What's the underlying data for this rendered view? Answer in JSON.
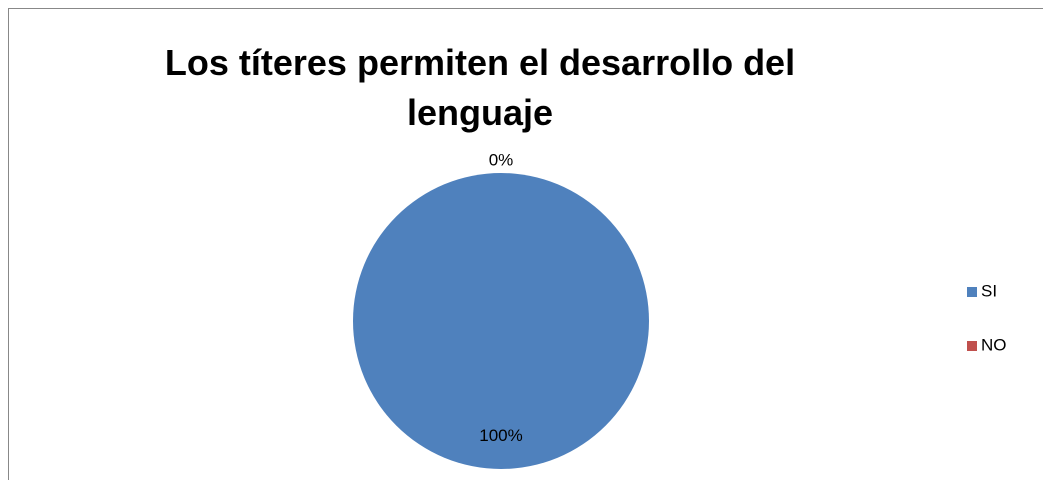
{
  "chart_data": {
    "type": "pie",
    "title": "Los títeres permiten el desarrollo del lenguaje",
    "categories": [
      "SI",
      "NO"
    ],
    "values": [
      100,
      0
    ],
    "value_labels": [
      "100%",
      "0%"
    ],
    "colors": [
      "#4f81bd",
      "#c0504d"
    ],
    "legend": "right"
  }
}
